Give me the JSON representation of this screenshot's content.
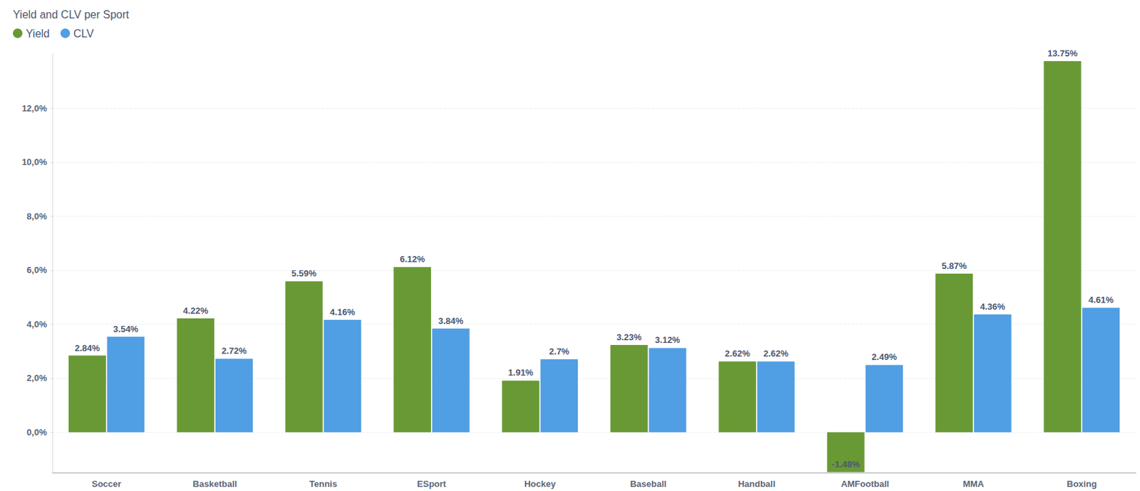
{
  "chart_data": {
    "type": "bar",
    "title": "Yield and CLV per Sport",
    "categories": [
      "Soccer",
      "Basketball",
      "Tennis",
      "ESport",
      "Hockey",
      "Baseball",
      "Handball",
      "AMFootball",
      "MMA",
      "Boxing"
    ],
    "series": [
      {
        "name": "Yield",
        "color": "#699934",
        "values": [
          2.84,
          4.22,
          5.59,
          6.12,
          1.91,
          3.23,
          2.62,
          -1.48,
          5.87,
          13.75
        ],
        "value_labels": [
          "2.84%",
          "4.22%",
          "5.59%",
          "6.12%",
          "1.91%",
          "3.23%",
          "2.62%",
          "-1.48%",
          "5.87%",
          "13.75%"
        ]
      },
      {
        "name": "CLV",
        "color": "#509ee3",
        "values": [
          3.54,
          2.72,
          4.16,
          3.84,
          2.7,
          3.12,
          2.62,
          2.49,
          4.36,
          4.61
        ],
        "value_labels": [
          "3.54%",
          "2.72%",
          "4.16%",
          "3.84%",
          "2.7%",
          "3.12%",
          "2.62%",
          "2.49%",
          "4.36%",
          "4.61%"
        ]
      }
    ],
    "ylim": [
      -1.5,
      14
    ],
    "yticks": [
      {
        "value": 0,
        "label": "0,0%"
      },
      {
        "value": 2,
        "label": "2,0%"
      },
      {
        "value": 4,
        "label": "4,0%"
      },
      {
        "value": 6,
        "label": "6,0%"
      },
      {
        "value": 8,
        "label": "8,0%"
      },
      {
        "value": 10,
        "label": "10,0%"
      },
      {
        "value": 12,
        "label": "12,0%"
      }
    ],
    "grid": true,
    "legend": "top-left",
    "data_labels": true
  }
}
